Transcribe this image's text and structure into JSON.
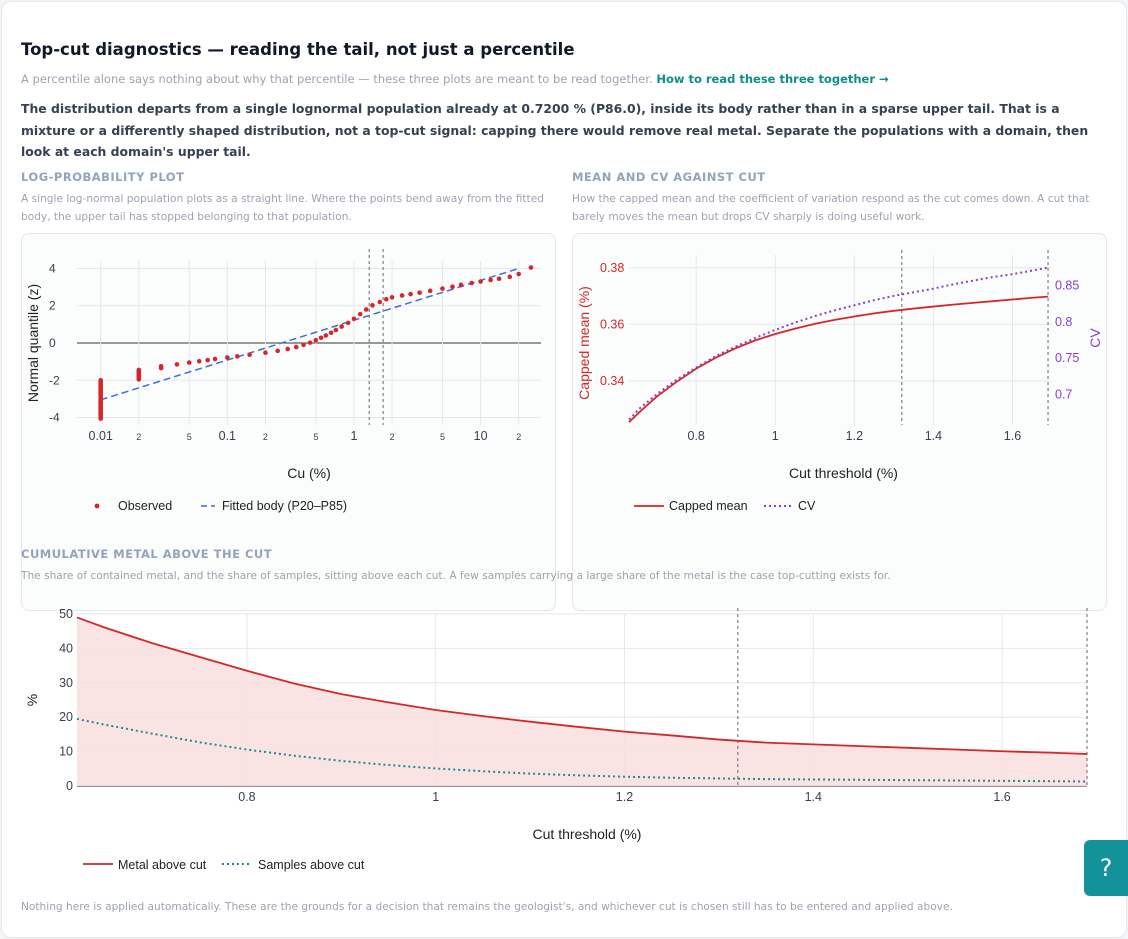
{
  "header": {
    "title": "Top-cut diagnostics — reading the tail, not just a percentile",
    "subtitle": "A percentile alone says nothing about why that percentile — these three plots are meant to be read together.",
    "link": "How to read these three together →",
    "verdict": "The distribution departs from a single lognormal population already at 0.7200 % (P86.0), inside its body rather than in a sparse upper tail. That is a mixture or a differently shaped distribution, not a top-cut signal: capping there would remove real metal. Separate the populations with a domain, then look at each domain's upper tail."
  },
  "sections": {
    "logprob": {
      "heading": "LOG-PROBABILITY PLOT",
      "desc": "A single log-normal population plots as a straight line. Where the points bend away from the fitted body, the upper tail has stopped belonging to that population."
    },
    "meancv": {
      "heading": "MEAN AND CV AGAINST CUT",
      "desc": "How the capped mean and the coefficient of variation respond as the cut comes down. A cut that barely moves the mean but drops CV sharply is doing useful work."
    },
    "cumulative": {
      "heading": "CUMULATIVE METAL ABOVE THE CUT",
      "desc": "The share of contained metal, and the share of samples, sitting above each cut. A few samples carrying a large share of the metal is the case top-cutting exists for."
    }
  },
  "footer": "Nothing here is applied automatically. These are the grounds for a decision that remains the geologist's, and whichever cut is chosen still has to be entered and applied above.",
  "help_label": "?",
  "colors": {
    "red": "#d62728",
    "blue": "#3b6fd8",
    "purple": "#8a3fd1",
    "teal": "#1f8a9a",
    "fill": "#f8dede"
  },
  "chart_data": [
    {
      "type": "scatter",
      "xlabel": "Cu (%)",
      "ylabel": "Normal quantile (z)",
      "x_scale": "log",
      "xlim": [
        0.0065,
        30
      ],
      "ylim": [
        -4.4,
        4.4
      ],
      "x_tick_labels": [
        {
          "v": 0.01,
          "t": "0.01"
        },
        {
          "v": 0.02,
          "t": "2"
        },
        {
          "v": 0.05,
          "t": "5"
        },
        {
          "v": 0.1,
          "t": "0.1"
        },
        {
          "v": 0.2,
          "t": "2"
        },
        {
          "v": 0.5,
          "t": "5"
        },
        {
          "v": 1,
          "t": "1"
        },
        {
          "v": 2,
          "t": "2"
        },
        {
          "v": 5,
          "t": "5"
        },
        {
          "v": 10,
          "t": "10"
        },
        {
          "v": 20,
          "t": "2"
        }
      ],
      "y_ticks": [
        -4,
        -2,
        0,
        2,
        4
      ],
      "reference_lines_x": [
        1.32,
        1.7
      ],
      "series": [
        {
          "name": "Observed",
          "style": "points",
          "points": [
            [
              0.01,
              -4.05
            ],
            [
              0.01,
              -3.8
            ],
            [
              0.01,
              -3.5
            ],
            [
              0.01,
              -3.2
            ],
            [
              0.01,
              -2.9
            ],
            [
              0.01,
              -2.6
            ],
            [
              0.01,
              -2.3
            ],
            [
              0.01,
              -2.05
            ],
            [
              0.02,
              -1.95
            ],
            [
              0.02,
              -1.75
            ],
            [
              0.02,
              -1.6
            ],
            [
              0.02,
              -1.45
            ],
            [
              0.03,
              -1.35
            ],
            [
              0.03,
              -1.25
            ],
            [
              0.04,
              -1.15
            ],
            [
              0.05,
              -1.05
            ],
            [
              0.06,
              -0.98
            ],
            [
              0.07,
              -0.92
            ],
            [
              0.08,
              -0.86
            ],
            [
              0.1,
              -0.78
            ],
            [
              0.12,
              -0.72
            ],
            [
              0.15,
              -0.63
            ],
            [
              0.2,
              -0.52
            ],
            [
              0.25,
              -0.42
            ],
            [
              0.3,
              -0.32
            ],
            [
              0.35,
              -0.22
            ],
            [
              0.4,
              -0.1
            ],
            [
              0.45,
              0.02
            ],
            [
              0.5,
              0.15
            ],
            [
              0.55,
              0.28
            ],
            [
              0.6,
              0.4
            ],
            [
              0.66,
              0.55
            ],
            [
              0.72,
              0.7
            ],
            [
              0.8,
              0.88
            ],
            [
              0.9,
              1.08
            ],
            [
              1,
              1.3
            ],
            [
              1.12,
              1.55
            ],
            [
              1.25,
              1.8
            ],
            [
              1.4,
              2.02
            ],
            [
              1.6,
              2.2
            ],
            [
              1.8,
              2.35
            ],
            [
              2,
              2.45
            ],
            [
              2.4,
              2.55
            ],
            [
              2.8,
              2.62
            ],
            [
              3.3,
              2.7
            ],
            [
              4,
              2.8
            ],
            [
              5,
              2.92
            ],
            [
              6,
              3.02
            ],
            [
              7,
              3.12
            ],
            [
              8.5,
              3.22
            ],
            [
              10,
              3.3
            ],
            [
              12,
              3.38
            ],
            [
              14,
              3.45
            ],
            [
              17,
              3.55
            ],
            [
              20,
              3.7
            ],
            [
              25,
              4.05
            ]
          ]
        },
        {
          "name": "Fitted body (P20–P85)",
          "style": "dashed",
          "points": [
            [
              0.01,
              -3.05
            ],
            [
              20,
              4.0
            ]
          ]
        }
      ]
    },
    {
      "type": "line",
      "xlabel": "Cut threshold (%)",
      "ylabel": "Capped mean (%)",
      "y2label": "CV",
      "xlim": [
        0.63,
        1.7
      ],
      "ylim": [
        0.3245,
        0.3845
      ],
      "y2lim": [
        0.6575,
        0.8925
      ],
      "x_ticks": [
        0.8,
        1,
        1.2,
        1.4,
        1.6
      ],
      "y_ticks": [
        0.34,
        0.36,
        0.38
      ],
      "y2_ticks": [
        0.7,
        0.75,
        0.8,
        0.85
      ],
      "reference_lines_x": [
        1.32,
        1.69
      ],
      "x": [
        0.63,
        0.66,
        0.7,
        0.75,
        0.8,
        0.85,
        0.9,
        0.95,
        1.0,
        1.05,
        1.1,
        1.15,
        1.2,
        1.25,
        1.3,
        1.35,
        1.4,
        1.45,
        1.5,
        1.55,
        1.6,
        1.65,
        1.69
      ],
      "series": [
        {
          "name": "Capped mean",
          "axis": "y",
          "style": "solid",
          "values": [
            0.3255,
            0.3295,
            0.3345,
            0.3397,
            0.3444,
            0.3483,
            0.3516,
            0.3544,
            0.3566,
            0.3585,
            0.3602,
            0.3616,
            0.3628,
            0.3639,
            0.3648,
            0.3656,
            0.3663,
            0.367,
            0.3676,
            0.3682,
            0.3688,
            0.3694,
            0.3698
          ]
        },
        {
          "name": "CV",
          "axis": "y2",
          "style": "dotted",
          "values": [
            0.665,
            0.682,
            0.7,
            0.72,
            0.737,
            0.753,
            0.766,
            0.778,
            0.789,
            0.799,
            0.808,
            0.816,
            0.823,
            0.83,
            0.836,
            0.841,
            0.846,
            0.852,
            0.857,
            0.862,
            0.866,
            0.871,
            0.875
          ]
        }
      ]
    },
    {
      "type": "area",
      "xlabel": "Cut threshold (%)",
      "ylabel": "%",
      "xlim": [
        0.62,
        1.69
      ],
      "ylim": [
        0,
        50
      ],
      "x_ticks": [
        0.8,
        1,
        1.2,
        1.4,
        1.6
      ],
      "y_ticks": [
        0,
        10,
        20,
        30,
        40,
        50
      ],
      "reference_lines_x": [
        1.32,
        1.69
      ],
      "x": [
        0.62,
        0.65,
        0.7,
        0.75,
        0.8,
        0.85,
        0.9,
        0.95,
        1.0,
        1.05,
        1.1,
        1.15,
        1.2,
        1.25,
        1.3,
        1.35,
        1.4,
        1.45,
        1.5,
        1.55,
        1.6,
        1.65,
        1.69
      ],
      "series": [
        {
          "name": "Metal above cut",
          "style": "solid",
          "fill": true,
          "values": [
            49,
            46,
            41.5,
            37.5,
            33.5,
            29.8,
            26.7,
            24.3,
            22.1,
            20.3,
            18.7,
            17.2,
            15.8,
            14.7,
            13.5,
            12.6,
            12.1,
            11.6,
            11.1,
            10.6,
            10.1,
            9.7,
            9.3
          ]
        },
        {
          "name": "Samples above cut",
          "style": "dotted",
          "fill": false,
          "values": [
            19.5,
            17.8,
            15.2,
            12.7,
            10.6,
            8.8,
            7.3,
            6.1,
            5.1,
            4.3,
            3.6,
            3.1,
            2.7,
            2.4,
            2.2,
            2.0,
            1.9,
            1.8,
            1.7,
            1.6,
            1.5,
            1.4,
            1.3
          ]
        }
      ]
    }
  ]
}
